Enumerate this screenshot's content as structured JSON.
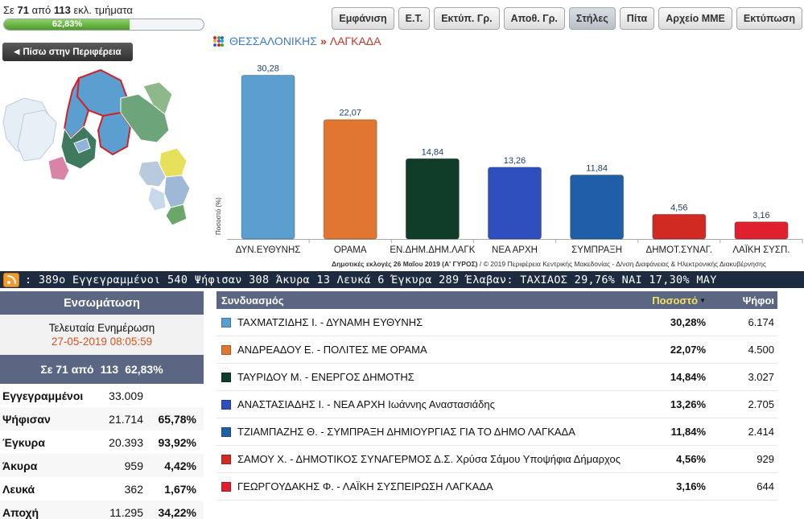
{
  "progress": {
    "prefix": "Σε",
    "counted": "71",
    "from": "από",
    "total": "113",
    "suffix": "εκλ. τμήματα",
    "percent_label": "62,83%",
    "fraction": 0.6283
  },
  "toolbar": [
    {
      "label": "Εμφάνιση",
      "active": false
    },
    {
      "label": "Ε.Τ.",
      "active": false
    },
    {
      "label": "Εκτύπ. Γρ.",
      "active": false
    },
    {
      "label": "Αποθ. Γρ.",
      "active": false
    },
    {
      "label": "Στήλες",
      "active": true
    },
    {
      "label": "Πίτα",
      "active": false
    },
    {
      "label": "Αρχείο ΜΜΕ",
      "active": false
    },
    {
      "label": "Εκτύπωση",
      "active": false
    }
  ],
  "back_button": {
    "label": "Πίσω στην Περιφέρεια"
  },
  "breadcrumb": {
    "parent": "ΘΕΣΣΑΛΟΝΙΚΗΣ",
    "separator": "»",
    "current": "ΛΑΓΚΑΔΑ"
  },
  "chart_data": {
    "type": "bar",
    "categories": [
      "ΔΥΝ.ΕΥΘΥΝΗΣ",
      "ΟΡΑΜΑ",
      "ΕΝ.ΔΗΜ.ΔΗΜ.ΛΑΓΚ",
      "ΝΕΑ ΑΡΧΗ",
      "ΣΥΜΠΡΑΞΗ",
      "ΔΗΜΟΤ.ΣΥΝΑΓ.",
      "ΛΑΪΚΗ ΣΥΣΠ."
    ],
    "values": [
      30.28,
      22.07,
      14.84,
      13.26,
      11.84,
      4.56,
      3.16
    ],
    "value_labels": [
      "30,28",
      "22,07",
      "14,84",
      "13,26",
      "11,84",
      "4,56",
      "3,16"
    ],
    "colors": [
      "#5a9fcf",
      "#e0762f",
      "#0f3d2a",
      "#2f4fbf",
      "#1f5fa8",
      "#d02a22",
      "#e0202e"
    ],
    "ylabel": "Ποσοστό (%)",
    "ylim": [
      0,
      32
    ],
    "grid": false,
    "footer_bold": "Δημοτικές εκλογές 26 Μαΐου 2019 (Α' ΓΥΡΟΣ)",
    "footer_rest": " / © 2019 Περιφέρεια Κεντρικής Μακεδονίας - Δ/νση Διαφάνειας & Ηλεκτρονικής Διακυβέρνησης"
  },
  "ticker": {
    "text": ": 389ο Εγγεγραμμένοι 540 Ψήφισαν 308 Άκυρα 13 Λευκά 6 Έγκυρα 289 Έλαβαν: ΤΑΧΙΑΟΣ 29,76% ΝΑΙ 17,30% ΜΑΥ"
  },
  "summary": {
    "title": "Ενσωμάτωση",
    "update_label": "Τελευταία Ενημέρωση",
    "update_time": "27-05-2019 08:05:59",
    "count_a": "Σε 71 από",
    "count_b": "113",
    "count_c": "62,83%",
    "rows": [
      {
        "label": "Εγγεγραμμένοι",
        "value": "33.009",
        "pct": ""
      },
      {
        "label": "Ψήφισαν",
        "value": "21.714",
        "pct": "65,78%"
      },
      {
        "label": "Έγκυρα",
        "value": "20.393",
        "pct": "93,92%"
      },
      {
        "label": "Άκυρα",
        "value": "959",
        "pct": "4,42%"
      },
      {
        "label": "Λευκά",
        "value": "362",
        "pct": "1,67%"
      },
      {
        "label": "Αποχή",
        "value": "11.295",
        "pct": "34,22%"
      }
    ]
  },
  "results": {
    "col_name": "Συνδυασμός",
    "col_pct": "Ποσοστό",
    "col_votes": "Ψήφοι",
    "rows": [
      {
        "color": "#5a9fcf",
        "name": "ΤΑΧΜΑΤΖΙΔΗΣ Ι. - ΔΥΝΑΜΗ ΕΥΘΥΝΗΣ",
        "pct": "30,28%",
        "votes": "6.174"
      },
      {
        "color": "#e0762f",
        "name": "ΑΝΔΡΕΑΔΟΥ Ε. - ΠΟΛΙΤΕΣ ΜΕ ΟΡΑΜΑ",
        "pct": "22,07%",
        "votes": "4.500"
      },
      {
        "color": "#0f3d2a",
        "name": "ΤΑΥΡΙΔΟΥ Μ. - ΕΝΕΡΓΟΣ ΔΗΜΟΤΗΣ",
        "pct": "14,84%",
        "votes": "3.027"
      },
      {
        "color": "#2f4fbf",
        "name": "ΑΝΑΣΤΑΣΙΑΔΗΣ Ι. - ΝΕΑ ΑΡΧΗ Ιωάννης Αναστασιάδης",
        "pct": "13,26%",
        "votes": "2.705"
      },
      {
        "color": "#1f5fa8",
        "name": "ΤΖΙΑΜΠΑΖΗΣ Θ. - ΣΥΜΠΡΑΞΗ ΔΗΜΙΟΥΡΓΙΑΣ ΓΙΑ ΤΟ ΔΗΜΟ ΛΑΓΚΑΔΑ",
        "pct": "11,84%",
        "votes": "2.414"
      },
      {
        "color": "#d02a22",
        "name": "ΣΑΜΟΥ Χ. - ΔΗΜΟΤΙΚΟΣ ΣΥΝΑΓΕΡΜΟΣ Δ.Σ. Χρύσα Σάμου Υποψήφια Δήμαρχος",
        "pct": "4,56%",
        "votes": "929"
      },
      {
        "color": "#e0202e",
        "name": "ΓΕΩΡΓΟΥΔΑΚΗΣ Φ. - ΛΑΪΚΗ ΣΥΣΠΕΙΡΩΣΗ ΛΑΓΚΑΔΑ",
        "pct": "3,16%",
        "votes": "644"
      }
    ]
  }
}
